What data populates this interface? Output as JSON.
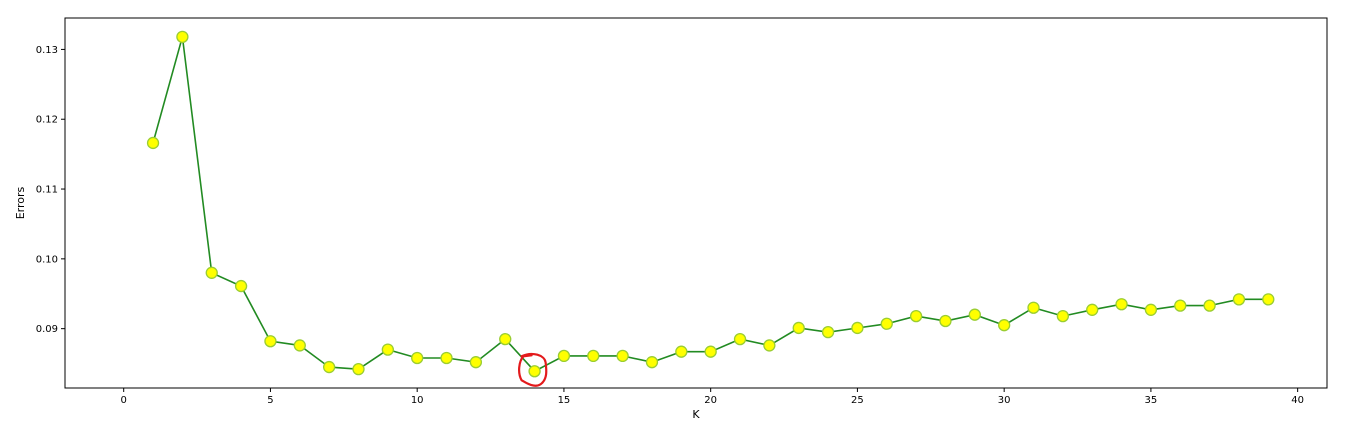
{
  "chart_data": {
    "type": "line",
    "title": "",
    "xlabel": "K",
    "ylabel": "Errors",
    "xlim": [
      -2,
      41
    ],
    "ylim": [
      0.0815,
      0.1345
    ],
    "xticks": [
      0,
      5,
      10,
      15,
      20,
      25,
      30,
      35,
      40
    ],
    "yticks": [
      0.09,
      0.1,
      0.11,
      0.12,
      0.13
    ],
    "grid": false,
    "legend": "none",
    "colors": {
      "line": "#228b22",
      "marker_fill": "#ffff00",
      "marker_edge": "#9acd32",
      "annotation": "#e31a1c"
    },
    "series": [
      {
        "x": [
          1,
          2,
          3,
          4,
          5,
          6,
          7,
          8,
          9,
          10,
          11,
          12,
          13,
          14,
          15,
          16,
          17,
          18,
          19,
          20,
          21,
          22,
          23,
          24,
          25,
          26,
          27,
          28,
          29,
          30,
          31,
          32,
          33,
          34,
          35,
          36,
          37,
          38,
          39
        ],
        "values": [
          0.1166,
          0.1318,
          0.098,
          0.0961,
          0.0882,
          0.0876,
          0.0845,
          0.0842,
          0.087,
          0.0858,
          0.0858,
          0.0852,
          0.0885,
          0.0839,
          0.0861,
          0.0861,
          0.0861,
          0.0852,
          0.0867,
          0.0867,
          0.0885,
          0.0876,
          0.0901,
          0.0895,
          0.0901,
          0.0907,
          0.0918,
          0.0911,
          0.092,
          0.0905,
          0.093,
          0.0918,
          0.0927,
          0.0935,
          0.0927,
          0.0933,
          0.0933,
          0.0942,
          0.0942
        ]
      }
    ],
    "annotations": [
      {
        "type": "circle",
        "x": 14,
        "y": 0.0839,
        "note": "hand-drawn red circle around minimum"
      }
    ]
  }
}
